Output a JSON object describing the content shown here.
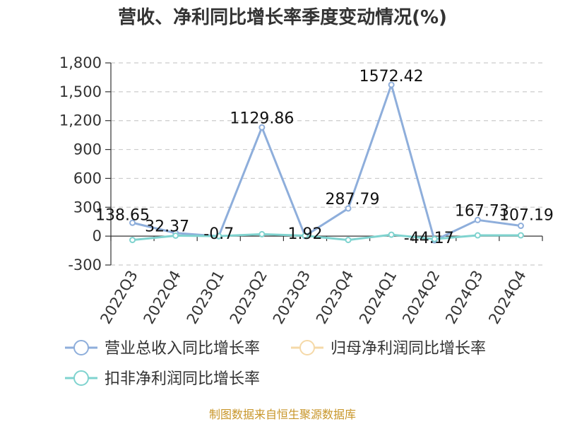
{
  "chart_data": {
    "type": "line",
    "title": "营收、净利同比增长率季度变动情况(%)",
    "categories": [
      "2022Q3",
      "2022Q4",
      "2023Q1",
      "2023Q2",
      "2023Q3",
      "2023Q4",
      "2024Q1",
      "2024Q2",
      "2024Q3",
      "2024Q4"
    ],
    "y_ticks": [
      "1,800",
      "1,500",
      "1,200",
      "900",
      "600",
      "300",
      "0",
      "-300"
    ],
    "ylim": [
      -300,
      1800
    ],
    "grid": true,
    "legend_position": "bottom",
    "series": [
      {
        "name": "营业总收入同比增长率",
        "color": "#8eaedb",
        "values": [
          138.65,
          32.37,
          -0.7,
          1129.86,
          1.92,
          287.79,
          1572.42,
          -44.17,
          167.73,
          107.19
        ],
        "labels": [
          "138.65",
          "32.37",
          "-0.7",
          "1129.86",
          "1.92",
          "287.79",
          "1572.42",
          "-44.17",
          "167.73",
          "107.19"
        ]
      },
      {
        "name": "归母净利润同比增长率",
        "color": "#f5d9a8",
        "values": [
          null,
          null,
          null,
          null,
          null,
          null,
          null,
          null,
          null,
          null
        ]
      },
      {
        "name": "扣非净利润同比增长率",
        "color": "#7fd3cf",
        "values": [
          -40,
          5,
          0,
          20,
          5,
          -40,
          15,
          -30,
          8,
          8
        ]
      }
    ],
    "source": "制图数据来自恒生聚源数据库"
  }
}
